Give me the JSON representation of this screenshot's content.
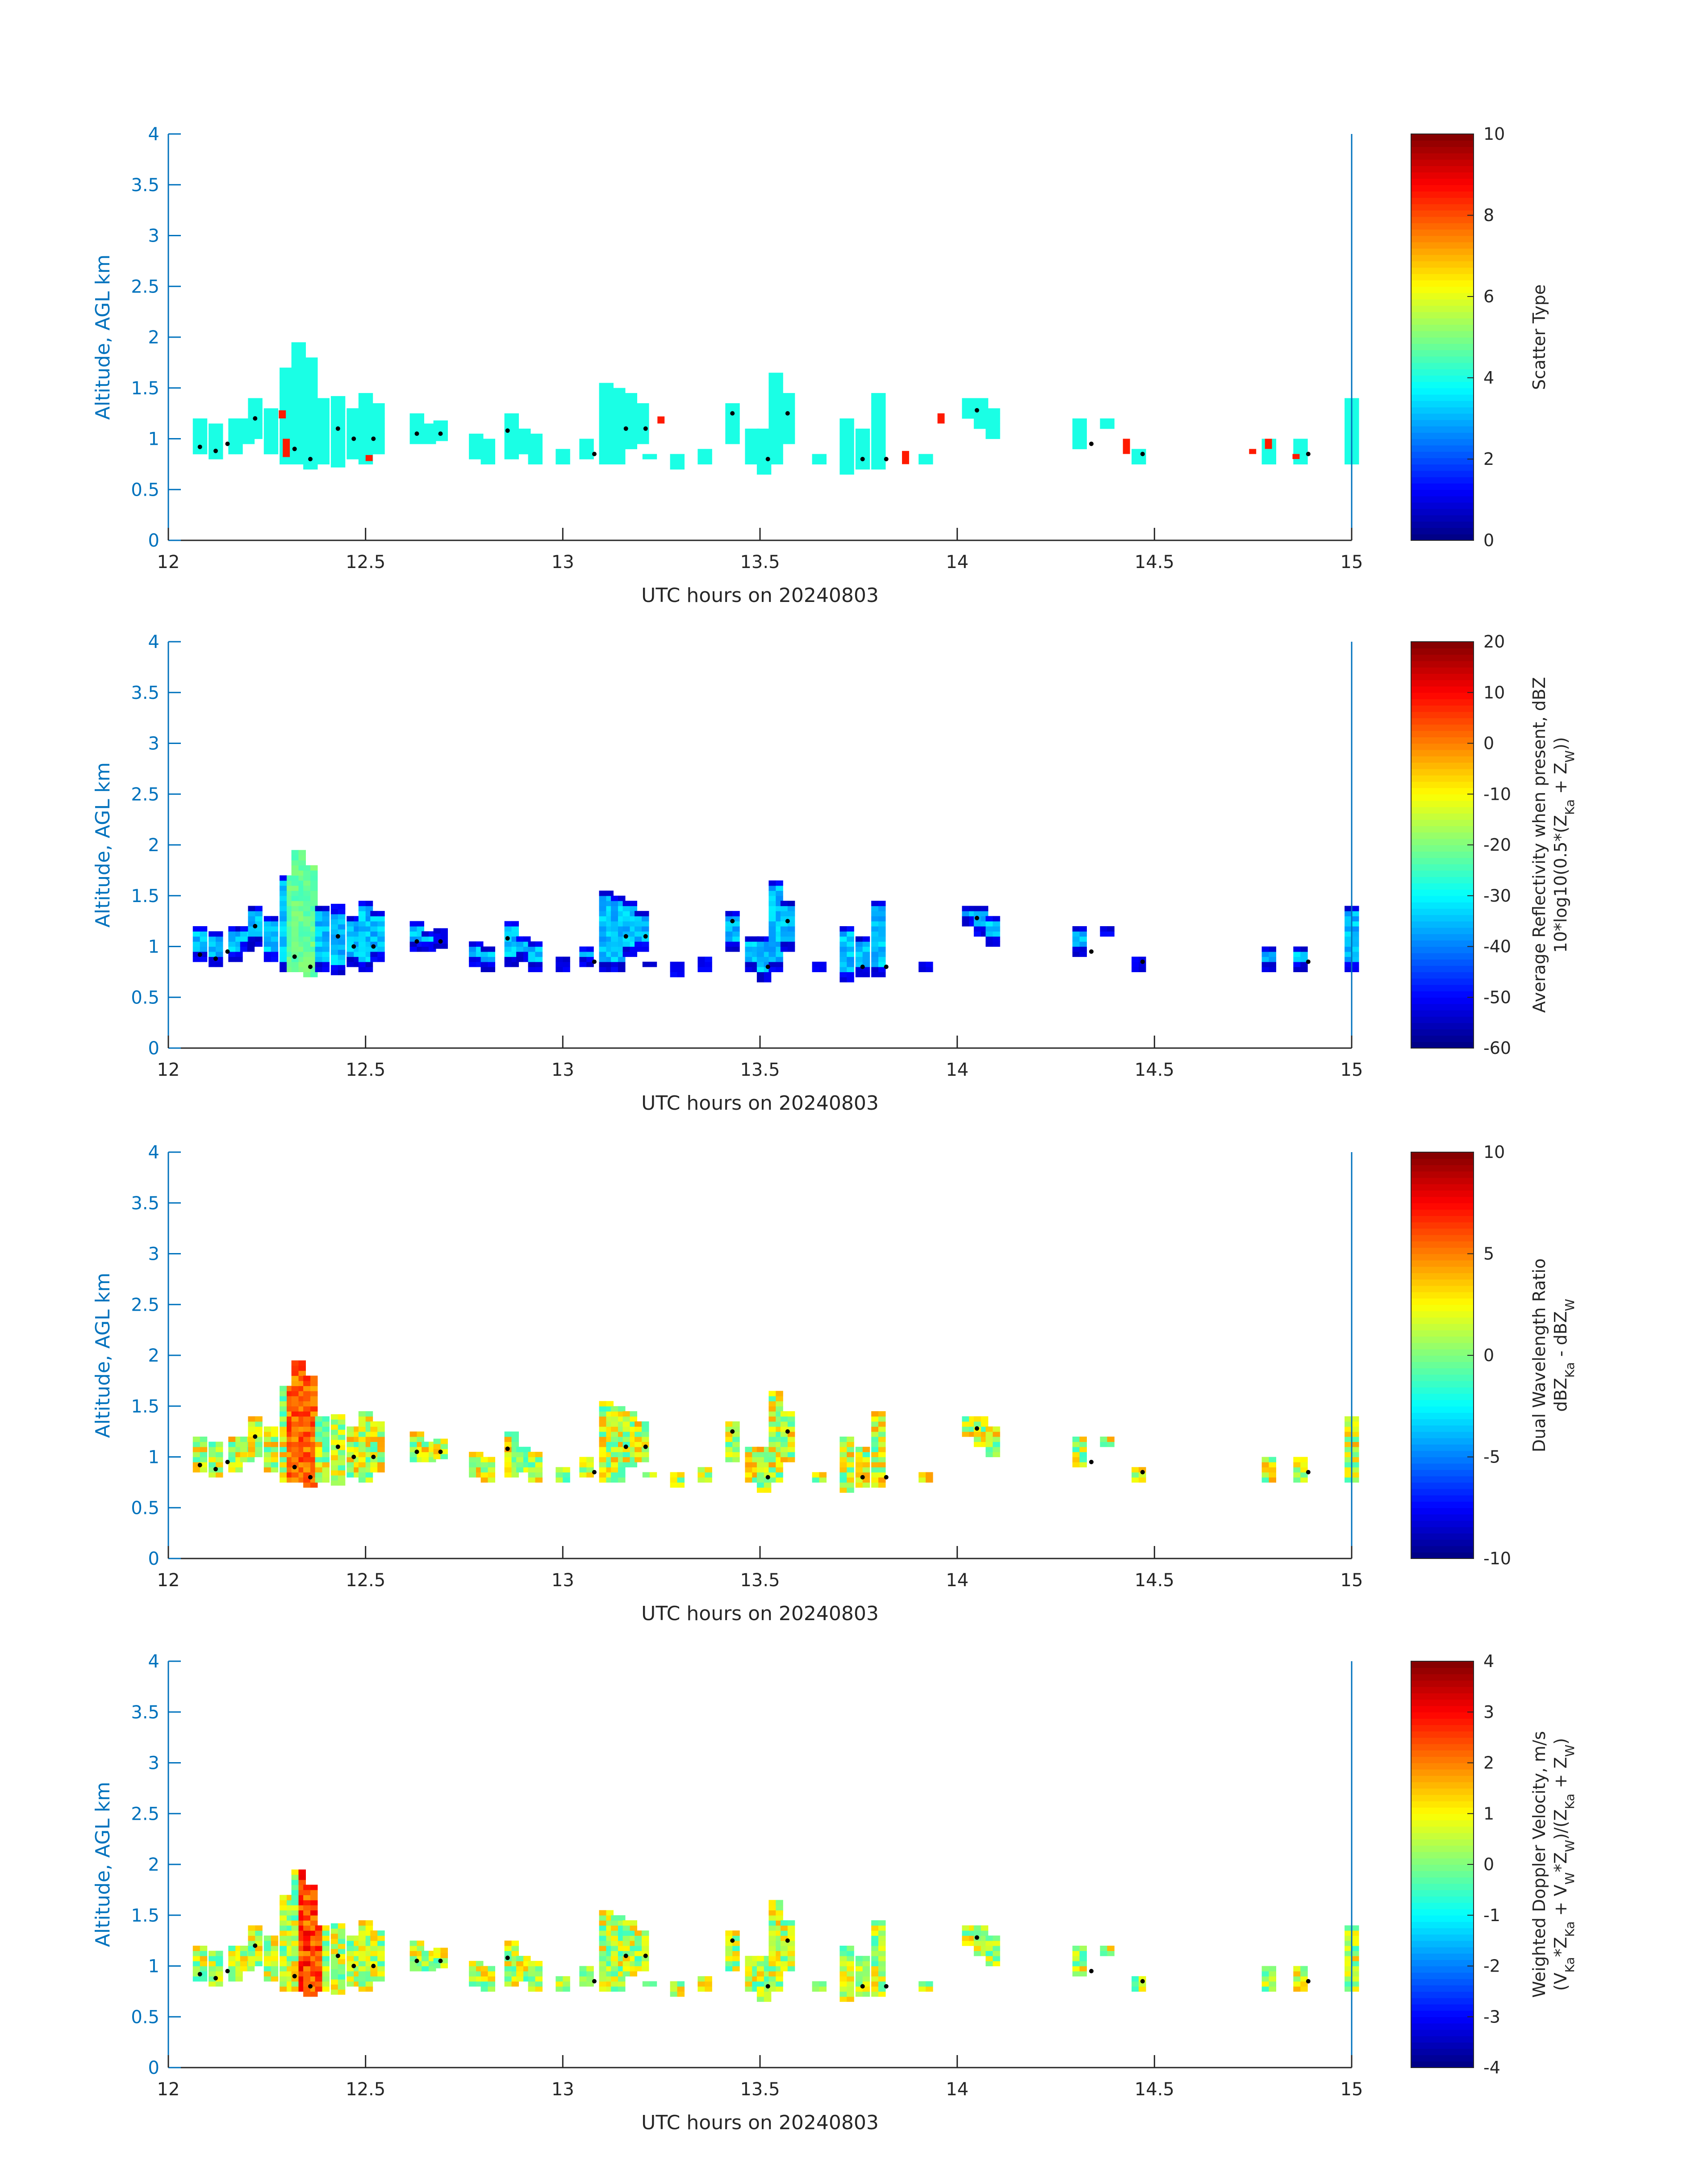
{
  "figure": {
    "xlim": [
      12,
      15
    ],
    "ylim": [
      0,
      4
    ],
    "x_ticks": [
      "12",
      "12.5",
      "13",
      "13.5",
      "14",
      "14.5",
      "15"
    ],
    "y_ticks": [
      "0",
      "0.5",
      "1",
      "1.5",
      "2",
      "2.5",
      "3",
      "3.5",
      "4"
    ],
    "xlabel": "UTC hours on 20240803",
    "ylabel": "Altitude, AGL km",
    "axis_color": "#0072BD"
  },
  "chart_data": [
    {
      "type": "heatmap",
      "xlabel": "UTC hours on 20240803",
      "ylabel": "Altitude, AGL km",
      "xlim": [
        12,
        15
      ],
      "ylim": [
        0,
        4
      ],
      "colorbar": {
        "label": "Scatter Type",
        "range": [
          0,
          10
        ],
        "ticks": [
          "0",
          "2",
          "4",
          "6",
          "8",
          "10"
        ],
        "colormap": "jet"
      },
      "dominant_value": 4,
      "spot_value": 8.5,
      "dots_value": 0,
      "cells": [
        [
          12.08,
          0.85,
          1.2
        ],
        [
          12.12,
          0.8,
          1.15
        ],
        [
          12.17,
          0.85,
          1.2
        ],
        [
          12.2,
          0.95,
          1.2
        ],
        [
          12.22,
          1.0,
          1.4
        ],
        [
          12.26,
          0.85,
          1.3
        ],
        [
          12.3,
          0.75,
          1.7
        ],
        [
          12.33,
          0.75,
          1.95
        ],
        [
          12.36,
          0.7,
          1.8
        ],
        [
          12.39,
          0.75,
          1.4
        ],
        [
          12.43,
          0.72,
          1.4
        ],
        [
          12.47,
          0.8,
          1.3
        ],
        [
          12.5,
          0.75,
          1.45
        ],
        [
          12.53,
          0.85,
          1.35
        ],
        [
          12.63,
          0.95,
          1.25
        ],
        [
          12.66,
          0.95,
          1.15
        ],
        [
          12.69,
          0.98,
          1.15
        ],
        [
          12.78,
          0.8,
          1.05
        ],
        [
          12.81,
          0.75,
          1.0
        ],
        [
          12.87,
          0.8,
          1.25
        ],
        [
          12.9,
          0.85,
          1.1
        ],
        [
          12.93,
          0.75,
          1.05
        ],
        [
          13.0,
          0.75,
          0.9
        ],
        [
          13.06,
          0.8,
          1.0
        ],
        [
          13.11,
          0.75,
          1.55
        ],
        [
          13.14,
          0.75,
          1.5
        ],
        [
          13.17,
          0.9,
          1.45
        ],
        [
          13.2,
          0.95,
          1.35
        ],
        [
          13.22,
          0.8,
          0.85
        ],
        [
          13.29,
          0.7,
          0.85
        ],
        [
          13.36,
          0.75,
          0.9
        ],
        [
          13.43,
          0.95,
          1.35
        ],
        [
          13.48,
          0.75,
          1.1
        ],
        [
          13.51,
          0.65,
          1.1
        ],
        [
          13.54,
          0.75,
          1.65
        ],
        [
          13.57,
          0.95,
          1.45
        ],
        [
          13.65,
          0.75,
          0.85
        ],
        [
          13.72,
          0.65,
          1.2
        ],
        [
          13.76,
          0.7,
          1.1
        ],
        [
          13.8,
          0.7,
          1.45
        ],
        [
          13.85,
          0.8,
          0.8
        ],
        [
          13.92,
          0.75,
          0.85
        ],
        [
          14.03,
          1.2,
          1.4
        ],
        [
          14.06,
          1.1,
          1.4
        ],
        [
          14.09,
          1.0,
          1.3
        ],
        [
          14.31,
          0.9,
          1.2
        ],
        [
          14.38,
          1.1,
          1.2
        ],
        [
          14.46,
          0.75,
          0.9
        ],
        [
          14.79,
          0.75,
          1.0
        ],
        [
          14.87,
          0.75,
          1.0
        ],
        [
          15.0,
          0.75,
          1.4
        ]
      ],
      "spots": [
        [
          12.28,
          1.2,
          1.28
        ],
        [
          12.29,
          0.82,
          1.0
        ],
        [
          12.5,
          0.78,
          0.84
        ],
        [
          13.24,
          1.15,
          1.22
        ],
        [
          13.86,
          0.75,
          0.88
        ],
        [
          13.95,
          1.15,
          1.25
        ],
        [
          14.42,
          0.85,
          1.0
        ],
        [
          14.74,
          0.85,
          0.9
        ],
        [
          14.78,
          0.9,
          1.0
        ],
        [
          14.85,
          0.8,
          0.85
        ]
      ],
      "dots": [
        [
          12.08,
          0.92
        ],
        [
          12.12,
          0.88
        ],
        [
          12.15,
          0.95
        ],
        [
          12.22,
          1.2
        ],
        [
          12.32,
          0.9
        ],
        [
          12.36,
          0.8
        ],
        [
          12.43,
          1.1
        ],
        [
          12.47,
          1.0
        ],
        [
          12.52,
          1.0
        ],
        [
          12.63,
          1.05
        ],
        [
          12.69,
          1.05
        ],
        [
          12.86,
          1.08
        ],
        [
          13.08,
          0.85
        ],
        [
          13.16,
          1.1
        ],
        [
          13.21,
          1.1
        ],
        [
          13.43,
          1.25
        ],
        [
          13.52,
          0.8
        ],
        [
          13.57,
          1.25
        ],
        [
          13.76,
          0.8
        ],
        [
          13.82,
          0.8
        ],
        [
          14.05,
          1.28
        ],
        [
          14.34,
          0.95
        ],
        [
          14.47,
          0.85
        ],
        [
          14.89,
          0.85
        ]
      ]
    },
    {
      "type": "heatmap",
      "xlabel": "UTC hours on 20240803",
      "ylabel": "Altitude, AGL km",
      "xlim": [
        12,
        15
      ],
      "ylim": [
        0,
        4
      ],
      "colorbar": {
        "label": [
          "Average Reflectivity when present, dBZ",
          "10*log10(0.5*(Z",
          "Ka",
          " + Z",
          "W",
          "))"
        ],
        "range": [
          -60,
          20
        ],
        "ticks": [
          "-60",
          "-50",
          "-40",
          "-30",
          "-20",
          "-10",
          "0",
          "10",
          "20"
        ],
        "colormap": "jet"
      },
      "edge_value": -55,
      "core_value": -35,
      "peak_value": -25,
      "dots_value": -60,
      "peak_column": [
        12.33,
        1.0,
        1.95
      ]
    },
    {
      "type": "heatmap",
      "xlabel": "UTC hours on 20240803",
      "ylabel": "Altitude, AGL km",
      "xlim": [
        12,
        15
      ],
      "ylim": [
        0,
        4
      ],
      "colorbar": {
        "label": [
          "Dual Wavelength Ratio",
          "dBZ",
          "Ka",
          " - dBZ",
          "W"
        ],
        "range": [
          -10,
          10
        ],
        "ticks": [
          "-10",
          "-5",
          "0",
          "5",
          "10"
        ],
        "colormap": "jet"
      },
      "typical_value": 1.5,
      "peak_value": 7,
      "peak_column": [
        12.33,
        0.9,
        1.95
      ]
    },
    {
      "type": "heatmap",
      "xlabel": "UTC hours on 20240803",
      "ylabel": "Altitude, AGL km",
      "xlim": [
        12,
        15
      ],
      "ylim": [
        0,
        4
      ],
      "colorbar": {
        "label": [
          "Weighted Doppler Velocity, m/s",
          "(V",
          "Ka",
          "*Z",
          "Ka",
          " + V",
          "W",
          "*Z",
          "W",
          ")/(Z",
          "Ka",
          " + Z",
          "W",
          ")"
        ],
        "range": [
          -4,
          4
        ],
        "ticks": [
          "-4",
          "-3",
          "-2",
          "-1",
          "0",
          "1",
          "2",
          "3",
          "4"
        ],
        "colormap": "jet"
      },
      "typical_value": 0.5,
      "peak_value": 3.2,
      "peak_column": [
        12.35,
        0.75,
        1.95
      ]
    }
  ]
}
